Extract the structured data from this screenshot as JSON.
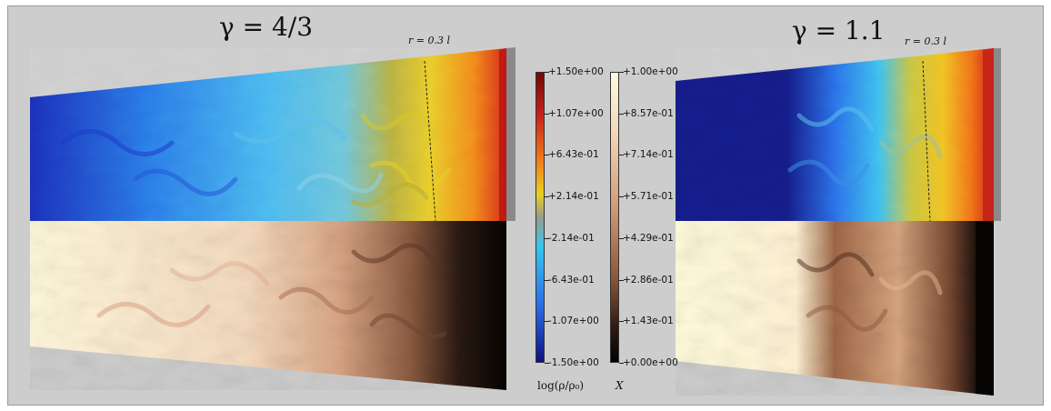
{
  "left_panel": {
    "title": "γ = 4/3",
    "radius_marker": "r = 0.3 l"
  },
  "right_panel": {
    "title": "γ = 1.1",
    "radius_marker": "r = 0.3 l"
  },
  "density_colorbar": {
    "caption": "log(ρ/ρ₀)",
    "ticks": [
      "+1.50e+00",
      "+1.07e+00",
      "+6.43e-01",
      "+2.14e-01",
      "-2.14e-01",
      "-6.43e-01",
      "-1.07e+00",
      "-1.50e+00"
    ],
    "colors": [
      "#7a0a0a",
      "#d2281a",
      "#f07a18",
      "#e8d020",
      "#9a9a8a",
      "#38c6ee",
      "#2a6ee8",
      "#12148a"
    ]
  },
  "fraction_colorbar": {
    "caption": "X",
    "ticks": [
      "+1.00e+00",
      "+8.57e-01",
      "+7.14e-01",
      "+5.71e-01",
      "+4.29e-01",
      "+2.86e-01",
      "+1.43e-01",
      "+0.00e+00"
    ],
    "colors": [
      "#fffbe0",
      "#f6dcc2",
      "#e6b898",
      "#cf9570",
      "#a9704f",
      "#7e4a32",
      "#40241a",
      "#050302"
    ]
  }
}
